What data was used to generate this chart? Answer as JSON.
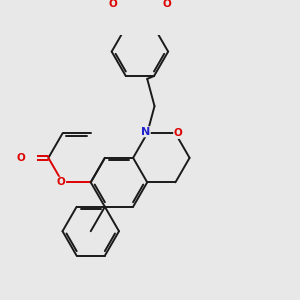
{
  "background_color": "#e8e8e8",
  "bond_color": "#1a1a1a",
  "oxygen_color": "#dd0000",
  "nitrogen_color": "#2222cc",
  "lw": 1.4,
  "figsize": [
    3.0,
    3.0
  ],
  "dpi": 100,
  "xlim": [
    -2.5,
    4.5
  ],
  "ylim": [
    -3.5,
    4.5
  ]
}
